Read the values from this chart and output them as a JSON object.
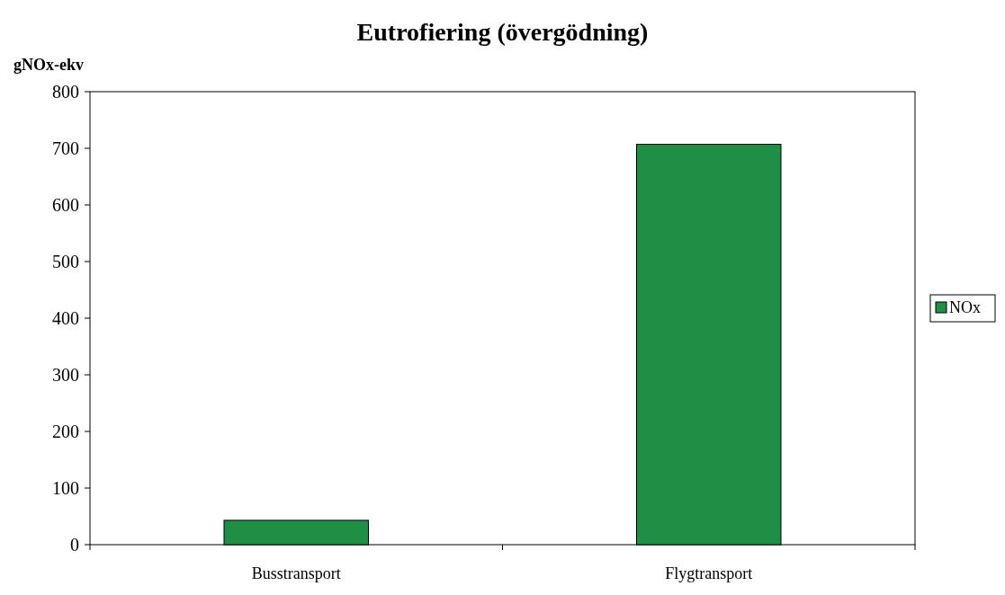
{
  "chart_data": {
    "type": "bar",
    "title": "Eutrofiering (övergödning)",
    "ylabel": "gNOx-ekv",
    "categories": [
      "Busstransport",
      "Flygtransport"
    ],
    "series": [
      {
        "name": "NOx",
        "color": "#1f8f46",
        "values": [
          43,
          707
        ]
      }
    ],
    "ylim": [
      0,
      800
    ],
    "yticks": [
      0,
      100,
      200,
      300,
      400,
      500,
      600,
      700,
      800
    ],
    "grid": false,
    "legend": "right"
  }
}
